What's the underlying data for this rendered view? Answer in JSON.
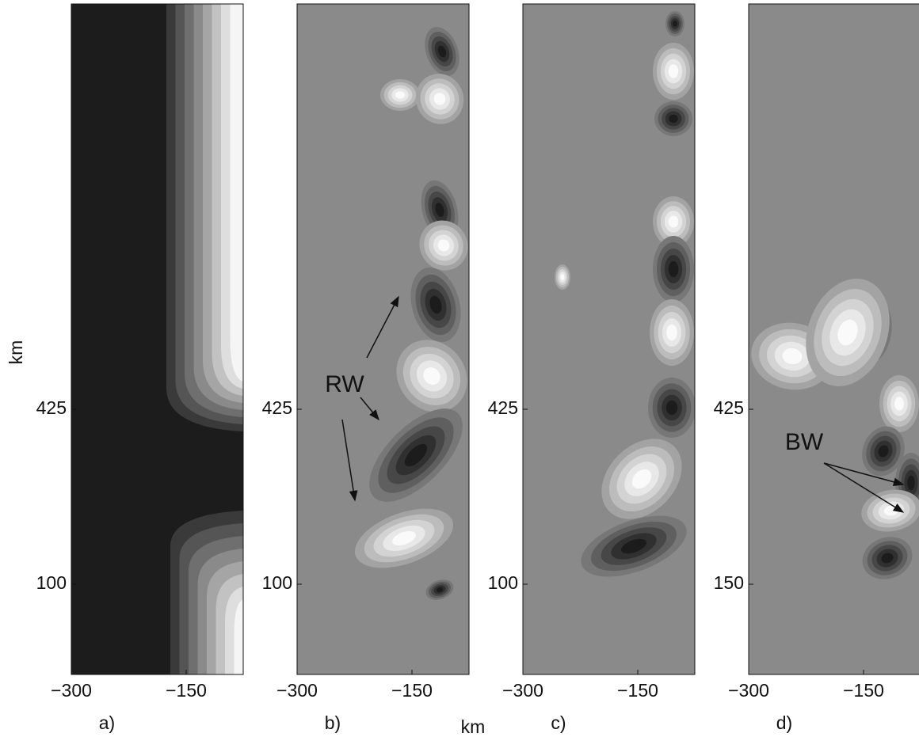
{
  "axis_labels": {
    "y": "km",
    "x": "km"
  },
  "panels": [
    {
      "label": "a)",
      "xticks": [
        "−300",
        "−150"
      ],
      "yticks": [
        "425",
        "100"
      ]
    },
    {
      "label": "b)",
      "xticks": [
        "−300",
        "−150"
      ],
      "yticks": [
        "425",
        "100"
      ],
      "annotation": "RW"
    },
    {
      "label": "c)",
      "xticks": [
        "−300",
        "−150"
      ],
      "yticks": [
        "425",
        "100"
      ]
    },
    {
      "label": "d)",
      "xticks": [
        "−300",
        "−150"
      ],
      "yticks": [
        "425",
        "150"
      ],
      "annotation": "BW"
    }
  ]
}
